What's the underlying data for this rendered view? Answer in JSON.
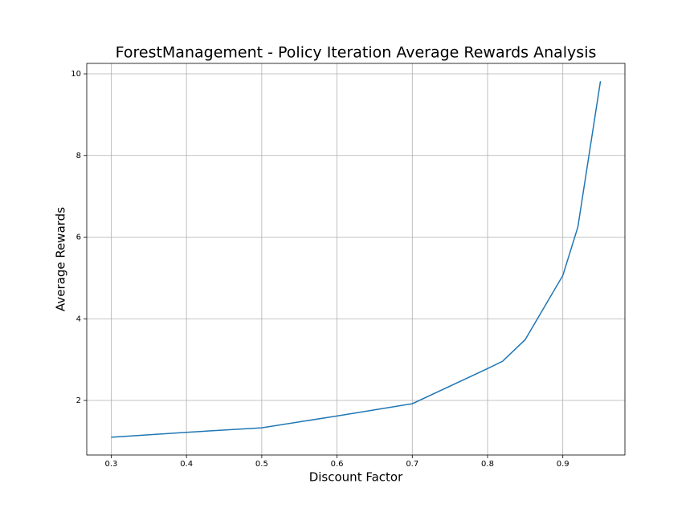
{
  "chart_data": {
    "type": "line",
    "title": "ForestManagement - Policy Iteration Average Rewards Analysis",
    "xlabel": "Discount Factor",
    "ylabel": "Average Rewards",
    "x": [
      0.3,
      0.4,
      0.5,
      0.6,
      0.7,
      0.8,
      0.82,
      0.85,
      0.9,
      0.92,
      0.95
    ],
    "series": [
      {
        "name": "Average Rewards",
        "color": "#1f77b4",
        "values": [
          1.1,
          1.22,
          1.33,
          1.62,
          1.92,
          2.78,
          2.96,
          3.49,
          5.06,
          6.25,
          9.82
        ]
      }
    ],
    "xlim": [
      0.2675,
      0.9825
    ],
    "xticks": [
      0.3,
      0.4,
      0.5,
      0.6,
      0.7,
      0.8,
      0.9
    ],
    "ylim": [
      0.664,
      10.256
    ],
    "yticks": [
      2,
      4,
      6,
      8,
      10
    ],
    "grid": true
  }
}
